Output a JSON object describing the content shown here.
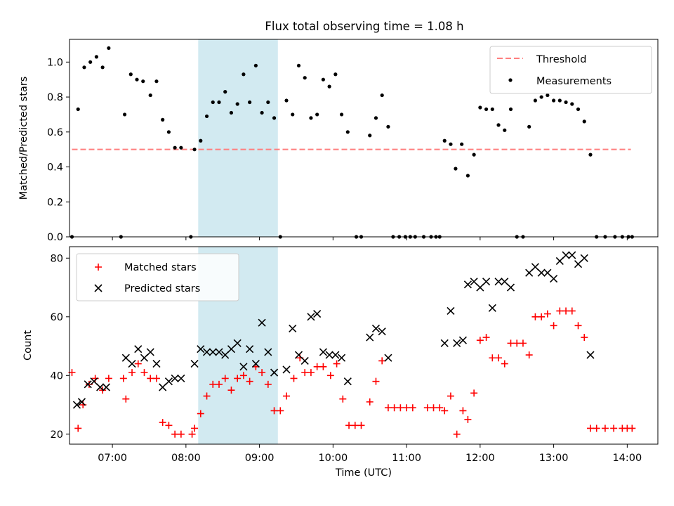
{
  "title": "Flux total observing time = 1.08 h",
  "chart_data": [
    {
      "type": "scatter",
      "ylabel": "Matched/Predicted stars",
      "ylim": [
        0,
        1.13
      ],
      "xlim": [
        "06:25",
        "14:25"
      ],
      "yticks": [
        "0.0",
        "0.2",
        "0.4",
        "0.6",
        "0.8",
        "1.0"
      ],
      "ytick_values": [
        0,
        0.2,
        0.4,
        0.6,
        0.8,
        1.0
      ],
      "legend": {
        "position": "upper right",
        "threshold_label": "Threshold",
        "measurements_label": "Measurements"
      },
      "threshold": {
        "value": 0.5,
        "x_start": "06:27",
        "x_end": "14:03",
        "color": "#ff7f7f"
      },
      "highlight": {
        "x_start": "08:10",
        "x_end": "09:15",
        "color": "#add8e6"
      },
      "series": [
        {
          "name": "Measurements",
          "color": "#000000",
          "points": [
            [
              "06:27",
              0.0
            ],
            [
              "06:32",
              0.73
            ],
            [
              "06:37",
              0.97
            ],
            [
              "06:42",
              1.0
            ],
            [
              "06:47",
              1.03
            ],
            [
              "06:52",
              0.97
            ],
            [
              "06:57",
              1.08
            ],
            [
              "07:07",
              0.0
            ],
            [
              "07:10",
              0.7
            ],
            [
              "07:15",
              0.93
            ],
            [
              "07:20",
              0.9
            ],
            [
              "07:25",
              0.89
            ],
            [
              "07:31",
              0.81
            ],
            [
              "07:36",
              0.89
            ],
            [
              "07:41",
              0.67
            ],
            [
              "07:46",
              0.6
            ],
            [
              "07:51",
              0.51
            ],
            [
              "07:56",
              0.51
            ],
            [
              "08:04",
              0.0
            ],
            [
              "08:07",
              0.5
            ],
            [
              "08:12",
              0.55
            ],
            [
              "08:17",
              0.69
            ],
            [
              "08:22",
              0.77
            ],
            [
              "08:27",
              0.77
            ],
            [
              "08:32",
              0.83
            ],
            [
              "08:37",
              0.71
            ],
            [
              "08:42",
              0.76
            ],
            [
              "08:47",
              0.93
            ],
            [
              "08:52",
              0.77
            ],
            [
              "08:57",
              0.98
            ],
            [
              "09:02",
              0.71
            ],
            [
              "09:07",
              0.77
            ],
            [
              "09:12",
              0.68
            ],
            [
              "09:17",
              0.0
            ],
            [
              "09:22",
              0.78
            ],
            [
              "09:27",
              0.7
            ],
            [
              "09:32",
              0.98
            ],
            [
              "09:37",
              0.91
            ],
            [
              "09:42",
              0.68
            ],
            [
              "09:47",
              0.7
            ],
            [
              "09:52",
              0.9
            ],
            [
              "09:57",
              0.86
            ],
            [
              "10:02",
              0.93
            ],
            [
              "10:07",
              0.7
            ],
            [
              "10:12",
              0.6
            ],
            [
              "10:19",
              0.0
            ],
            [
              "10:23",
              0.0
            ],
            [
              "10:30",
              0.58
            ],
            [
              "10:35",
              0.68
            ],
            [
              "10:40",
              0.81
            ],
            [
              "10:45",
              0.63
            ],
            [
              "10:49",
              0.0
            ],
            [
              "10:54",
              0.0
            ],
            [
              "10:59",
              0.0
            ],
            [
              "11:03",
              0.0
            ],
            [
              "11:07",
              0.0
            ],
            [
              "11:14",
              0.0
            ],
            [
              "11:20",
              0.0
            ],
            [
              "11:24",
              0.0
            ],
            [
              "11:27",
              0.0
            ],
            [
              "11:31",
              0.55
            ],
            [
              "11:36",
              0.53
            ],
            [
              "11:40",
              0.39
            ],
            [
              "11:45",
              0.53
            ],
            [
              "11:50",
              0.35
            ],
            [
              "11:55",
              0.47
            ],
            [
              "12:00",
              0.74
            ],
            [
              "12:05",
              0.73
            ],
            [
              "12:10",
              0.73
            ],
            [
              "12:15",
              0.64
            ],
            [
              "12:20",
              0.61
            ],
            [
              "12:25",
              0.73
            ],
            [
              "12:30",
              0.0
            ],
            [
              "12:35",
              0.0
            ],
            [
              "12:40",
              0.63
            ],
            [
              "12:45",
              0.78
            ],
            [
              "12:50",
              0.8
            ],
            [
              "12:55",
              0.81
            ],
            [
              "13:00",
              0.78
            ],
            [
              "13:05",
              0.78
            ],
            [
              "13:10",
              0.77
            ],
            [
              "13:15",
              0.76
            ],
            [
              "13:20",
              0.73
            ],
            [
              "13:25",
              0.66
            ],
            [
              "13:30",
              0.47
            ],
            [
              "13:35",
              0.0
            ],
            [
              "13:42",
              0.0
            ],
            [
              "13:50",
              0.0
            ],
            [
              "13:56",
              0.0
            ],
            [
              "14:01",
              0.0
            ],
            [
              "14:04",
              0.0
            ]
          ]
        }
      ]
    },
    {
      "type": "scatter",
      "ylabel": "Count",
      "xlabel": "Time (UTC)",
      "ylim": [
        16.6,
        83.9
      ],
      "xlim": [
        "06:25",
        "14:25"
      ],
      "yticks": [
        "20",
        "40",
        "60",
        "80"
      ],
      "ytick_values": [
        20,
        40,
        60,
        80
      ],
      "xticks": [
        "07:00",
        "08:00",
        "09:00",
        "10:00",
        "11:00",
        "12:00",
        "13:00",
        "14:00"
      ],
      "legend": {
        "position": "upper left",
        "matched_label": "Matched stars",
        "predicted_label": "Predicted stars"
      },
      "highlight": {
        "x_start": "08:10",
        "x_end": "09:15",
        "color": "#add8e6"
      },
      "series": [
        {
          "name": "Matched stars",
          "marker": "+",
          "color": "#ff0000",
          "points": [
            [
              "06:27",
              41
            ],
            [
              "06:32",
              22
            ],
            [
              "06:36",
              30
            ],
            [
              "06:41",
              37
            ],
            [
              "06:46",
              39
            ],
            [
              "06:52",
              35
            ],
            [
              "06:57",
              39
            ],
            [
              "07:09",
              39
            ],
            [
              "07:11",
              32
            ],
            [
              "07:16",
              41
            ],
            [
              "07:21",
              44
            ],
            [
              "07:26",
              41
            ],
            [
              "07:31",
              39
            ],
            [
              "07:36",
              39
            ],
            [
              "07:41",
              24
            ],
            [
              "07:46",
              23
            ],
            [
              "07:51",
              20
            ],
            [
              "07:56",
              20
            ],
            [
              "08:05",
              20
            ],
            [
              "08:07",
              22
            ],
            [
              "08:12",
              27
            ],
            [
              "08:17",
              33
            ],
            [
              "08:22",
              37
            ],
            [
              "08:27",
              37
            ],
            [
              "08:32",
              39
            ],
            [
              "08:37",
              35
            ],
            [
              "08:42",
              39
            ],
            [
              "08:47",
              40
            ],
            [
              "08:52",
              38
            ],
            [
              "08:57",
              43
            ],
            [
              "09:02",
              41
            ],
            [
              "09:07",
              37
            ],
            [
              "09:12",
              28
            ],
            [
              "09:17",
              28
            ],
            [
              "09:22",
              33
            ],
            [
              "09:28",
              39
            ],
            [
              "09:33",
              46
            ],
            [
              "09:37",
              41
            ],
            [
              "09:42",
              41
            ],
            [
              "09:47",
              43
            ],
            [
              "09:52",
              43
            ],
            [
              "09:58",
              40
            ],
            [
              "10:03",
              44
            ],
            [
              "10:08",
              32
            ],
            [
              "10:13",
              23
            ],
            [
              "10:18",
              23
            ],
            [
              "10:23",
              23
            ],
            [
              "10:30",
              31
            ],
            [
              "10:35",
              38
            ],
            [
              "10:40",
              45
            ],
            [
              "10:45",
              29
            ],
            [
              "10:50",
              29
            ],
            [
              "10:55",
              29
            ],
            [
              "11:00",
              29
            ],
            [
              "11:05",
              29
            ],
            [
              "11:17",
              29
            ],
            [
              "11:22",
              29
            ],
            [
              "11:27",
              29
            ],
            [
              "11:31",
              28
            ],
            [
              "11:36",
              33
            ],
            [
              "11:41",
              20
            ],
            [
              "11:46",
              28
            ],
            [
              "11:50",
              25
            ],
            [
              "11:55",
              34
            ],
            [
              "12:00",
              52
            ],
            [
              "12:05",
              53
            ],
            [
              "12:10",
              46
            ],
            [
              "12:15",
              46
            ],
            [
              "12:20",
              44
            ],
            [
              "12:25",
              51
            ],
            [
              "12:30",
              51
            ],
            [
              "12:35",
              51
            ],
            [
              "12:40",
              47
            ],
            [
              "12:45",
              60
            ],
            [
              "12:50",
              60
            ],
            [
              "12:55",
              61
            ],
            [
              "13:00",
              57
            ],
            [
              "13:05",
              62
            ],
            [
              "13:10",
              62
            ],
            [
              "13:15",
              62
            ],
            [
              "13:20",
              57
            ],
            [
              "13:25",
              53
            ],
            [
              "13:30",
              22
            ],
            [
              "13:35",
              22
            ],
            [
              "13:42",
              22
            ],
            [
              "13:49",
              22
            ],
            [
              "13:56",
              22
            ],
            [
              "14:00",
              22
            ],
            [
              "14:04",
              22
            ]
          ]
        },
        {
          "name": "Predicted stars",
          "marker": "x",
          "color": "#000000",
          "points": [
            [
              "06:31",
              30
            ],
            [
              "06:35",
              31
            ],
            [
              "06:40",
              37
            ],
            [
              "06:45",
              38
            ],
            [
              "06:50",
              36
            ],
            [
              "06:55",
              36
            ],
            [
              "07:11",
              46
            ],
            [
              "07:16",
              44
            ],
            [
              "07:21",
              49
            ],
            [
              "07:26",
              46
            ],
            [
              "07:31",
              48
            ],
            [
              "07:36",
              44
            ],
            [
              "07:41",
              36
            ],
            [
              "07:46",
              38
            ],
            [
              "07:51",
              39
            ],
            [
              "07:56",
              39
            ],
            [
              "08:07",
              44
            ],
            [
              "08:12",
              49
            ],
            [
              "08:17",
              48
            ],
            [
              "08:22",
              48
            ],
            [
              "08:27",
              48
            ],
            [
              "08:32",
              47
            ],
            [
              "08:37",
              49
            ],
            [
              "08:42",
              51
            ],
            [
              "08:47",
              43
            ],
            [
              "08:52",
              49
            ],
            [
              "08:57",
              44
            ],
            [
              "09:02",
              58
            ],
            [
              "09:07",
              48
            ],
            [
              "09:12",
              41
            ],
            [
              "09:22",
              42
            ],
            [
              "09:27",
              56
            ],
            [
              "09:32",
              47
            ],
            [
              "09:37",
              45
            ],
            [
              "09:42",
              60
            ],
            [
              "09:47",
              61
            ],
            [
              "09:52",
              48
            ],
            [
              "09:57",
              47
            ],
            [
              "10:02",
              47
            ],
            [
              "10:07",
              46
            ],
            [
              "10:12",
              38
            ],
            [
              "10:30",
              53
            ],
            [
              "10:35",
              56
            ],
            [
              "10:40",
              55
            ],
            [
              "10:45",
              46
            ],
            [
              "11:31",
              51
            ],
            [
              "11:36",
              62
            ],
            [
              "11:41",
              51
            ],
            [
              "11:46",
              52
            ],
            [
              "11:50",
              71
            ],
            [
              "11:55",
              72
            ],
            [
              "12:00",
              70
            ],
            [
              "12:05",
              72
            ],
            [
              "12:10",
              63
            ],
            [
              "12:15",
              72
            ],
            [
              "12:20",
              72
            ],
            [
              "12:25",
              70
            ],
            [
              "12:40",
              75
            ],
            [
              "12:45",
              77
            ],
            [
              "12:50",
              75
            ],
            [
              "12:55",
              75
            ],
            [
              "13:00",
              73
            ],
            [
              "13:05",
              79
            ],
            [
              "13:10",
              81
            ],
            [
              "13:15",
              81
            ],
            [
              "13:20",
              78
            ],
            [
              "13:25",
              80
            ],
            [
              "13:30",
              47
            ]
          ]
        }
      ]
    }
  ]
}
